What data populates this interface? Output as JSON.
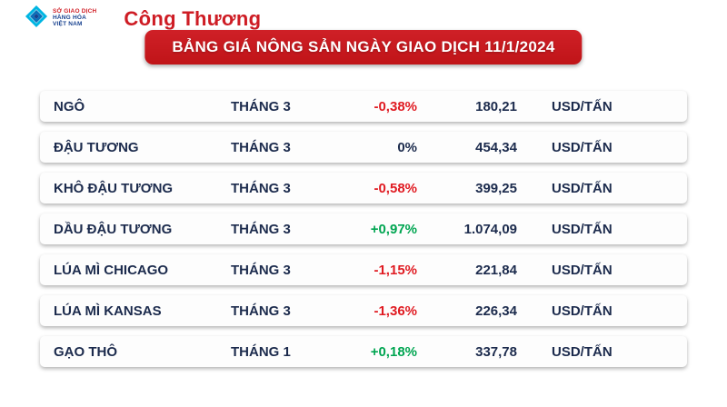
{
  "header": {
    "exchange_logo": {
      "line1": "SỞ GIAO DỊCH",
      "line2": "HÀNG HÓA",
      "line3": "VIỆT NAM"
    },
    "newspaper_logo": "Công Thương"
  },
  "banner": {
    "title": "BẢNG GIÁ NÔNG SẢN NGÀY GIAO DỊCH 11/1/2024"
  },
  "chart_data": {
    "type": "table",
    "title": "BẢNG GIÁ NÔNG SẢN NGÀY GIAO DỊCH 11/1/2024",
    "columns": [
      "commodity",
      "month",
      "change",
      "price",
      "unit"
    ],
    "rows": [
      {
        "commodity": "NGÔ",
        "month": "THÁNG 3",
        "change": "-0,38%",
        "price": "180,21",
        "unit": "USD/TẤN",
        "change_color": "#e01b22"
      },
      {
        "commodity": "ĐẬU TƯƠNG",
        "month": "THÁNG 3",
        "change": "0%",
        "price": "454,34",
        "unit": "USD/TẤN",
        "change_color": "#1c2b4d"
      },
      {
        "commodity": "KHÔ ĐẬU TƯƠNG",
        "month": "THÁNG 3",
        "change": "-0,58%",
        "price": "399,25",
        "unit": "USD/TẤN",
        "change_color": "#e01b22"
      },
      {
        "commodity": "DẦU ĐẬU TƯƠNG",
        "month": "THÁNG 3",
        "change": "+0,97%",
        "price": "1.074,09",
        "unit": "USD/TẤN",
        "change_color": "#00a551"
      },
      {
        "commodity": "LÚA MÌ CHICAGO",
        "month": "THÁNG 3",
        "change": "-1,15%",
        "price": "221,84",
        "unit": "USD/TẤN",
        "change_color": "#e01b22"
      },
      {
        "commodity": "LÚA MÌ KANSAS",
        "month": "THÁNG 3",
        "change": "-1,36%",
        "price": "226,34",
        "unit": "USD/TẤN",
        "change_color": "#e01b22"
      },
      {
        "commodity": "GẠO THÔ",
        "month": "THÁNG 1",
        "change": "+0,18%",
        "price": "337,78",
        "unit": "USD/TẤN",
        "change_color": "#00a551"
      }
    ]
  },
  "colors": {
    "banner_red": "#c41a1f",
    "text_navy": "#1c2b4d",
    "negative": "#e01b22",
    "positive": "#00a551",
    "logo_red": "#ce1c24",
    "logo_blue": "#17418f",
    "logo_cyan": "#00b5e2"
  }
}
